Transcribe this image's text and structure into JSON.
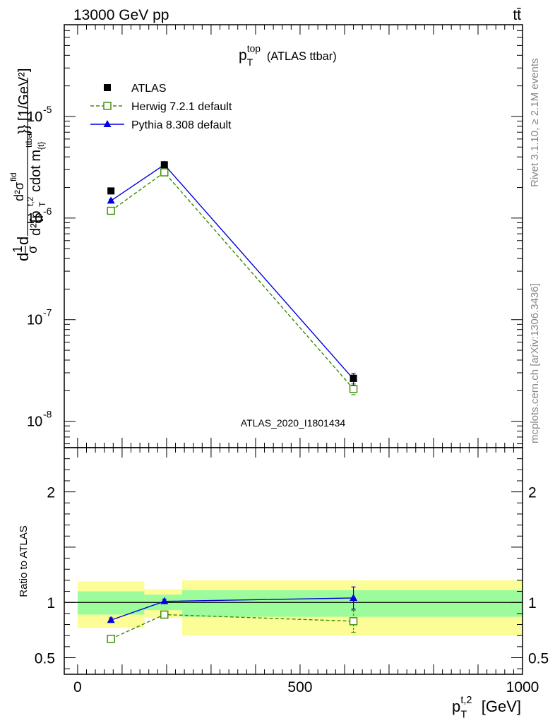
{
  "header": {
    "beam": "13000 GeV pp",
    "process": "tt̄"
  },
  "side_notes": {
    "rivet": "Rivet 3.1.10, ≥ 2.1M events",
    "source": "mcplots.cern.ch [arXiv:1306.3436]"
  },
  "chart_data": [
    {
      "type": "scatter",
      "panel": "main",
      "title": {
        "base": "p",
        "sup": "top",
        "sub": "T",
        "rest": "(ATLAS ttbar)"
      },
      "ylabel": "d\\frac{1}{\\sigma}d\\frac{d^{2}\\sigma^{fid}}{d^{2}{p_{T}^{t,2} cdot m^{ttbar}_{tt}}} [1/GeV^{2}]",
      "yscale": "log",
      "ylim": [
        5.5e-09,
        8e-05
      ],
      "xlim": [
        -30,
        1000
      ],
      "y_ticks": [
        "10^{-5}",
        "10^{-6}",
        "10^{-7}",
        "10^{-8}"
      ],
      "legend_position": "top-left",
      "annotation": "ATLAS_2020_I1801434",
      "series": [
        {
          "name": "ATLAS",
          "color": "#000000",
          "marker": "filled-square",
          "x": [
            75,
            195,
            620
          ],
          "y": [
            1.85e-06,
            3.35e-06,
            2.65e-08
          ]
        },
        {
          "name": "Herwig 7.2.1 default",
          "color": "#3a8a00",
          "marker": "open-square",
          "line": "dashed",
          "x": [
            75,
            195,
            620
          ],
          "y": [
            1.18e-06,
            2.82e-06,
            2.08e-08
          ],
          "yerr": [
            5e-08,
            8e-08,
            2.5e-09
          ]
        },
        {
          "name": "Pythia 8.308 default",
          "color": "#0000dd",
          "marker": "filled-triangle",
          "line": "solid",
          "x": [
            75,
            195,
            620
          ],
          "y": [
            1.48e-06,
            3.35e-06,
            2.6e-08
          ],
          "yerr": [
            5e-08,
            8e-08,
            3.5e-09
          ]
        }
      ]
    },
    {
      "type": "scatter",
      "panel": "ratio",
      "xlabel": {
        "base": "p",
        "sup": "t,2",
        "sub": "T",
        "rest": "[GeV]"
      },
      "ylabel": "Ratio to ATLAS",
      "ylim": [
        0.35,
        2.4
      ],
      "xlim": [
        -30,
        1000
      ],
      "x_ticks": [
        "0",
        "500",
        "1000"
      ],
      "y_ticks": [
        "0.5",
        "1",
        "2"
      ],
      "uncertainty_bands": [
        {
          "x_range": [
            0,
            150
          ],
          "inner": [
            0.89,
            1.1
          ],
          "outer": [
            0.77,
            1.19
          ]
        },
        {
          "x_range": [
            150,
            235
          ],
          "inner": [
            0.93,
            1.07
          ],
          "outer": [
            0.86,
            1.12
          ]
        },
        {
          "x_range": [
            235,
            1000
          ],
          "inner": [
            0.87,
            1.11
          ],
          "outer": [
            0.7,
            1.2
          ]
        }
      ],
      "band_colors": {
        "inner": "#9cfc9c",
        "outer": "#fdfd97"
      },
      "series": [
        {
          "name": "Herwig 7.2.1 default",
          "color": "#3a8a00",
          "marker": "open-square",
          "line": "dashed",
          "x": [
            75,
            195,
            620
          ],
          "y": [
            0.67,
            0.89,
            0.83
          ],
          "yerr": [
            0.02,
            0.02,
            0.1
          ]
        },
        {
          "name": "Pythia 8.308 default",
          "color": "#0000dd",
          "marker": "filled-triangle",
          "line": "solid",
          "x": [
            75,
            195,
            620
          ],
          "y": [
            0.84,
            1.01,
            1.04
          ],
          "yerr": [
            0.02,
            0.02,
            0.1
          ]
        }
      ]
    }
  ]
}
